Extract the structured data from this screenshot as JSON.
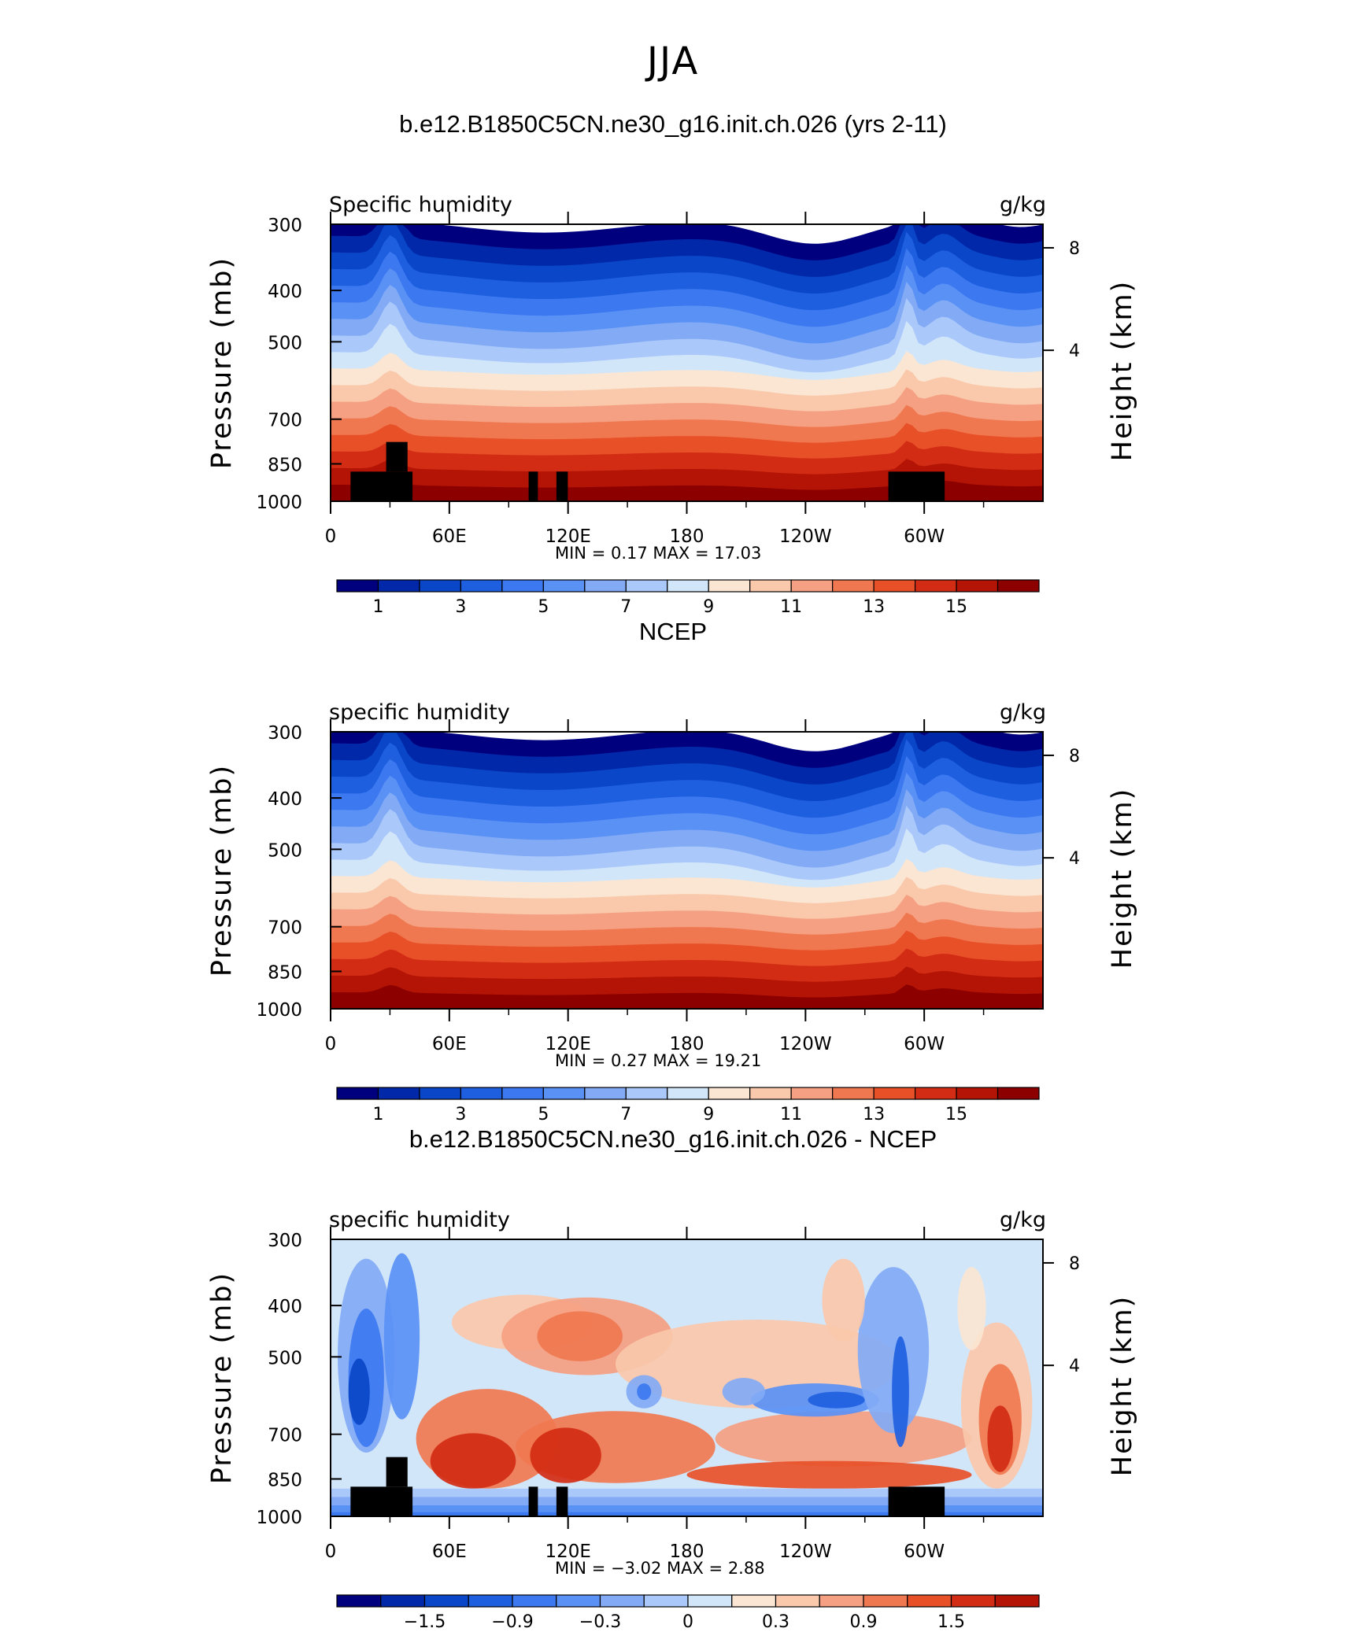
{
  "page": {
    "title": "JJA"
  },
  "chart_data": [
    {
      "type": "heatmap",
      "title": "b.e12.B1850C5CN.ne30_g16.init.ch.026 (yrs 2-11)",
      "variable_label": "Specific humidity",
      "units": "g/kg",
      "ylabel": "Pressure (mb)",
      "y2label": "Height (km)",
      "y_ticks": [
        "300",
        "400",
        "500",
        "700",
        "850",
        "1000"
      ],
      "y2_ticks": [
        "8",
        "4"
      ],
      "x_ticks": [
        "0",
        "60E",
        "120E",
        "180",
        "120W",
        "60W"
      ],
      "min_label": "MIN =",
      "min_value": "0.17",
      "max_label": "MAX =",
      "max_value": "17.03",
      "colorbar_labels": [
        "1",
        "3",
        "5",
        "7",
        "9",
        "11",
        "13",
        "15"
      ],
      "colors": [
        "#00007f",
        "#0028a8",
        "#0a46c8",
        "#1e5fe0",
        "#3c78f0",
        "#5a91f5",
        "#82aaf5",
        "#aac8fa",
        "#d2e6fa",
        "#fae6d2",
        "#fac8aa",
        "#f5a082",
        "#f07850",
        "#e85028",
        "#d22d14",
        "#b41405",
        "#8c0000"
      ],
      "levels": [
        1,
        2,
        3,
        4,
        5,
        6,
        7,
        8,
        9,
        10,
        11,
        12,
        13,
        14,
        15,
        16
      ],
      "contour_tops_pressure": [
        [
          0,
          0.045
        ],
        [
          0.03,
          0.05
        ],
        [
          0.06,
          0.045
        ],
        [
          0.12,
          0.025
        ],
        [
          0.2,
          0.02
        ],
        [
          0.3,
          0.025
        ],
        [
          0.42,
          0.03
        ],
        [
          0.55,
          0.06
        ],
        [
          0.68,
          0.04
        ],
        [
          0.78,
          0.03
        ],
        [
          0.9,
          0.045
        ],
        [
          1,
          0.05
        ]
      ],
      "terrain": true
    },
    {
      "type": "heatmap",
      "title": "NCEP",
      "variable_label": "specific humidity",
      "units": "g/kg",
      "ylabel": "Pressure (mb)",
      "y2label": "Height (km)",
      "y_ticks": [
        "300",
        "400",
        "500",
        "700",
        "850",
        "1000"
      ],
      "y2_ticks": [
        "8",
        "4"
      ],
      "x_ticks": [
        "0",
        "60E",
        "120E",
        "180",
        "120W",
        "60W"
      ],
      "min_label": "MIN =",
      "min_value": "0.27",
      "max_label": "MAX =",
      "max_value": "19.21",
      "colorbar_labels": [
        "1",
        "3",
        "5",
        "7",
        "9",
        "11",
        "13",
        "15"
      ],
      "colors": [
        "#00007f",
        "#0028a8",
        "#0a46c8",
        "#1e5fe0",
        "#3c78f0",
        "#5a91f5",
        "#82aaf5",
        "#aac8fa",
        "#d2e6fa",
        "#fae6d2",
        "#fac8aa",
        "#f5a082",
        "#f07850",
        "#e85028",
        "#d22d14",
        "#b41405",
        "#8c0000"
      ],
      "levels": [
        1,
        2,
        3,
        4,
        5,
        6,
        7,
        8,
        9,
        10,
        11,
        12,
        13,
        14,
        15,
        16
      ],
      "terrain": false
    },
    {
      "type": "heatmap",
      "title": "b.e12.B1850C5CN.ne30_g16.init.ch.026 - NCEP",
      "variable_label": "specific humidity",
      "units": "g/kg",
      "ylabel": "Pressure (mb)",
      "y2label": "Height (km)",
      "y_ticks": [
        "300",
        "400",
        "500",
        "700",
        "850",
        "1000"
      ],
      "y2_ticks": [
        "8",
        "4"
      ],
      "x_ticks": [
        "0",
        "60E",
        "120E",
        "180",
        "120W",
        "60W"
      ],
      "min_label": "MIN =",
      "min_value": "−3.02",
      "max_label": "MAX =",
      "max_value": "2.88",
      "colorbar_labels": [
        "−1.5",
        "−0.9",
        "−0.3",
        "0",
        "0.3",
        "0.9",
        "1.5"
      ],
      "colors": [
        "#00007f",
        "#0028a8",
        "#0a46c8",
        "#1e5fe0",
        "#3c78f0",
        "#5a91f5",
        "#82aaf5",
        "#aac8fa",
        "#d2e6fa",
        "#fae6d2",
        "#fac8aa",
        "#f5a082",
        "#f07850",
        "#e85028",
        "#d22d14",
        "#b41405"
      ],
      "levels": [
        -1.8,
        -1.5,
        -1.2,
        -0.9,
        -0.6,
        -0.3,
        -0.1,
        0,
        0.1,
        0.3,
        0.6,
        0.9,
        1.2,
        1.5,
        1.8
      ],
      "terrain": true
    }
  ]
}
